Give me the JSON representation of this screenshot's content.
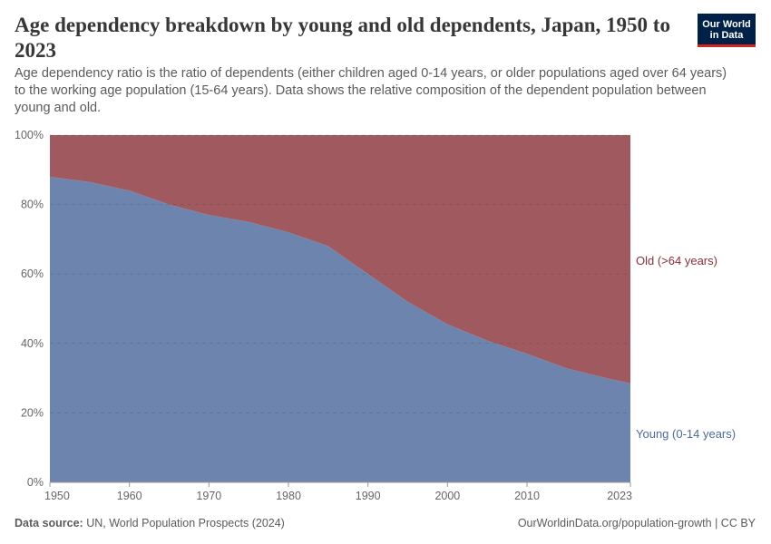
{
  "header": {
    "title": "Age dependency breakdown by young and old dependents, Japan, 1950 to 2023",
    "subtitle": "Age dependency ratio is the ratio of dependents (either children aged 0-14 years, or older populations aged over 64 years) to the working age population (15-64 years). Data shows the relative composition of the dependent population between young and old.",
    "logo_text": "Our World in Data"
  },
  "footer": {
    "source_label": "Data source:",
    "source": "UN, World Population Prospects (2024)",
    "link": "OurWorldinData.org/population-growth | CC BY"
  },
  "chart_data": {
    "type": "area",
    "stacked": true,
    "title": "Age dependency breakdown by young and old dependents, Japan, 1950 to 2023",
    "x": [
      1950,
      1955,
      1960,
      1965,
      1970,
      1975,
      1980,
      1985,
      1990,
      1995,
      2000,
      2005,
      2010,
      2015,
      2020,
      2023
    ],
    "series": [
      {
        "name": "Young (0-14 years)",
        "color": "#6d85ae",
        "values": [
          88,
          86.5,
          84,
          80,
          77,
          75,
          72,
          68,
          60,
          52,
          45.5,
          40.8,
          37,
          32.8,
          30,
          28.5
        ]
      },
      {
        "name": "Old (>64 years)",
        "color": "#a05a5f",
        "values": [
          12,
          13.5,
          16,
          20,
          23,
          25,
          28,
          32,
          40,
          48,
          54.5,
          59.2,
          63,
          67.2,
          70,
          71.5
        ]
      }
    ],
    "xlim": [
      1950,
      2023
    ],
    "ylim": [
      0,
      100
    ],
    "x_ticks": [
      "1950",
      "1960",
      "1970",
      "1980",
      "1990",
      "2000",
      "2010",
      "2023"
    ],
    "y_ticks": [
      "0%",
      "20%",
      "40%",
      "60%",
      "80%",
      "100%"
    ],
    "grid": "horizontal dashed",
    "legend": "right, inline labels"
  }
}
